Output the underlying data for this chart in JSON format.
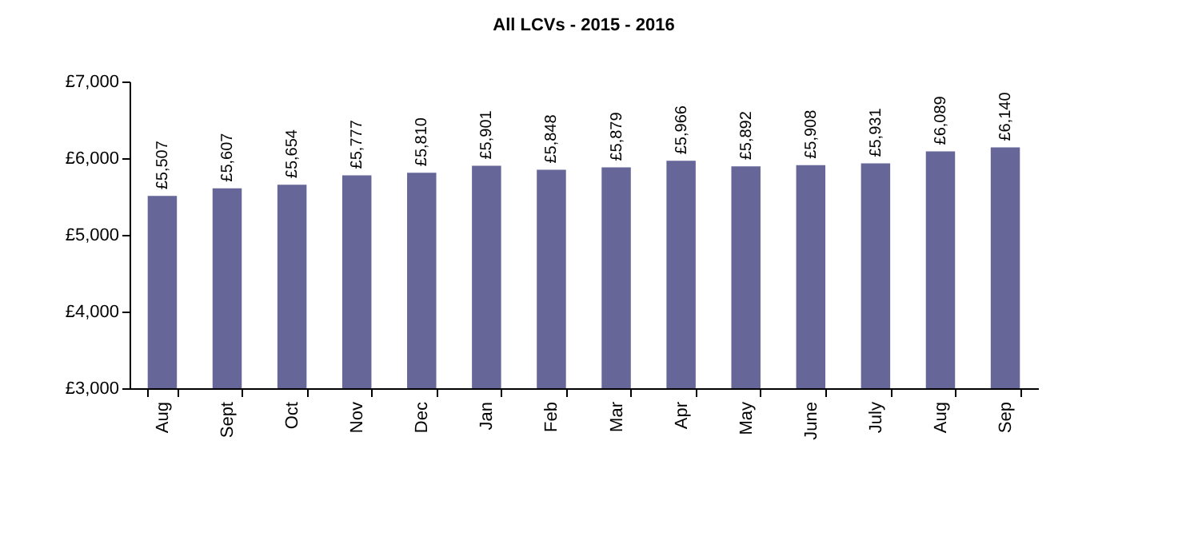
{
  "chart_data": {
    "type": "bar",
    "title": "All LCVs - 2015 - 2016",
    "categories": [
      "Aug",
      "Sept",
      "Oct",
      "Nov",
      "Dec",
      "Jan",
      "Feb",
      "Mar",
      "Apr",
      "May",
      "June",
      "July",
      "Aug",
      "Sep"
    ],
    "values": [
      5507,
      5607,
      5654,
      5777,
      5810,
      5901,
      5848,
      5879,
      5966,
      5892,
      5908,
      5931,
      6089,
      6140
    ],
    "value_labels": [
      "£5,507",
      "£5,607",
      "£5,654",
      "£5,777",
      "£5,810",
      "£5,901",
      "£5,848",
      "£5,879",
      "£5,966",
      "£5,892",
      "£5,908",
      "£5,931",
      "£6,089",
      "£6,140"
    ],
    "color": "#666699",
    "ylim": [
      3000,
      7000
    ],
    "yticks": [
      {
        "value": 3000,
        "label": "£3,000"
      },
      {
        "value": 4000,
        "label": "£4,000"
      },
      {
        "value": 5000,
        "label": "£5,000"
      },
      {
        "value": 6000,
        "label": "£6,000"
      },
      {
        "value": 7000,
        "label": "£7,000"
      }
    ],
    "grid": false
  }
}
